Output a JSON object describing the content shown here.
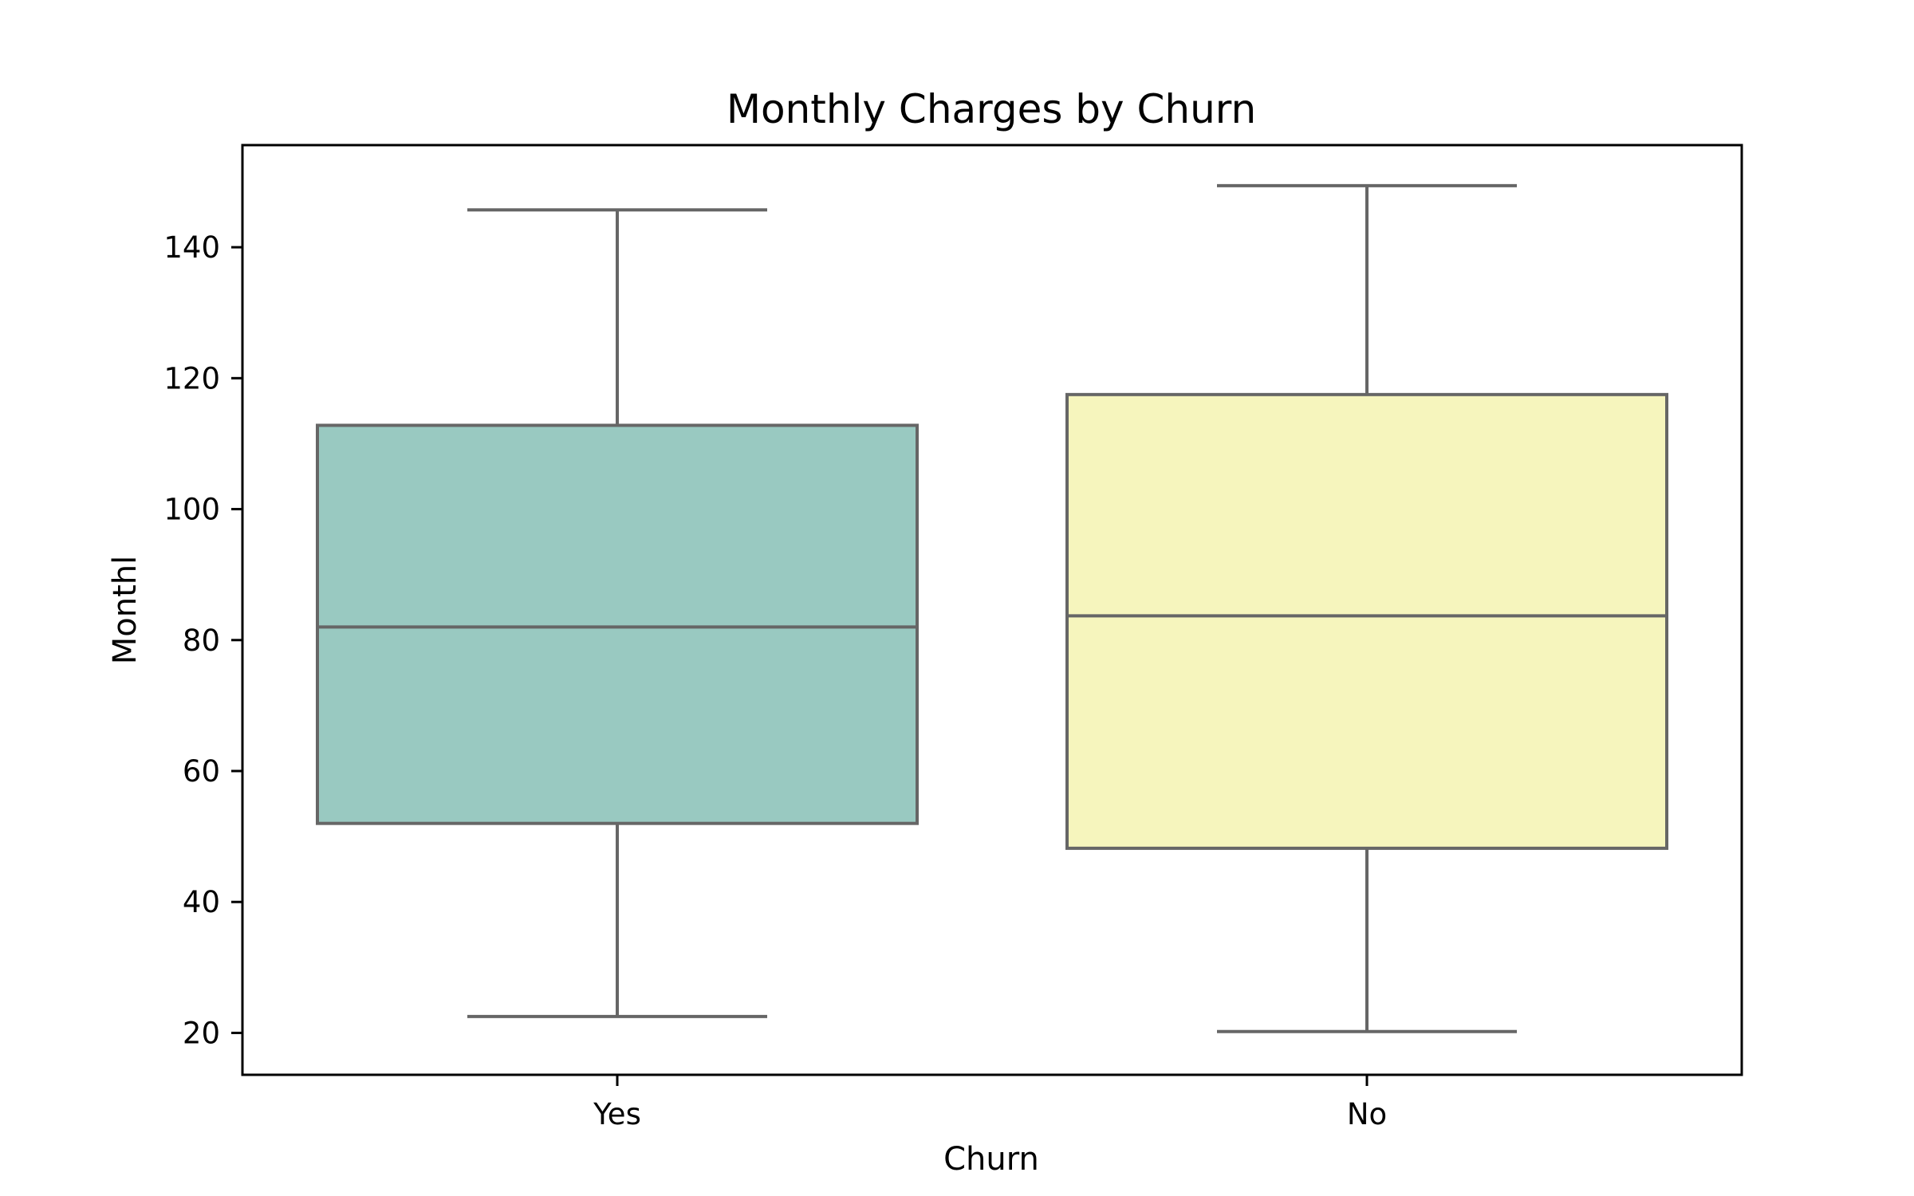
{
  "chart_data": {
    "type": "box",
    "title": "Monthly Charges by Churn",
    "xlabel": "Churn",
    "ylabel": "Monthl",
    "categories": [
      "Yes",
      "No"
    ],
    "boxes": [
      {
        "category": "Yes",
        "whisker_low": 22.5,
        "q1": 52.0,
        "median": 82.0,
        "q3": 112.8,
        "whisker_high": 145.7,
        "color": "#99c9c1"
      },
      {
        "category": "No",
        "whisker_low": 20.2,
        "q1": 48.2,
        "median": 83.7,
        "q3": 117.5,
        "whisker_high": 149.4,
        "color": "#f6f5bd"
      }
    ],
    "line_color": "#666666",
    "ylim": [
      13.6,
      155.6
    ],
    "yticks": [
      20,
      40,
      60,
      80,
      100,
      120,
      140
    ],
    "grid": false,
    "legend": "none"
  }
}
